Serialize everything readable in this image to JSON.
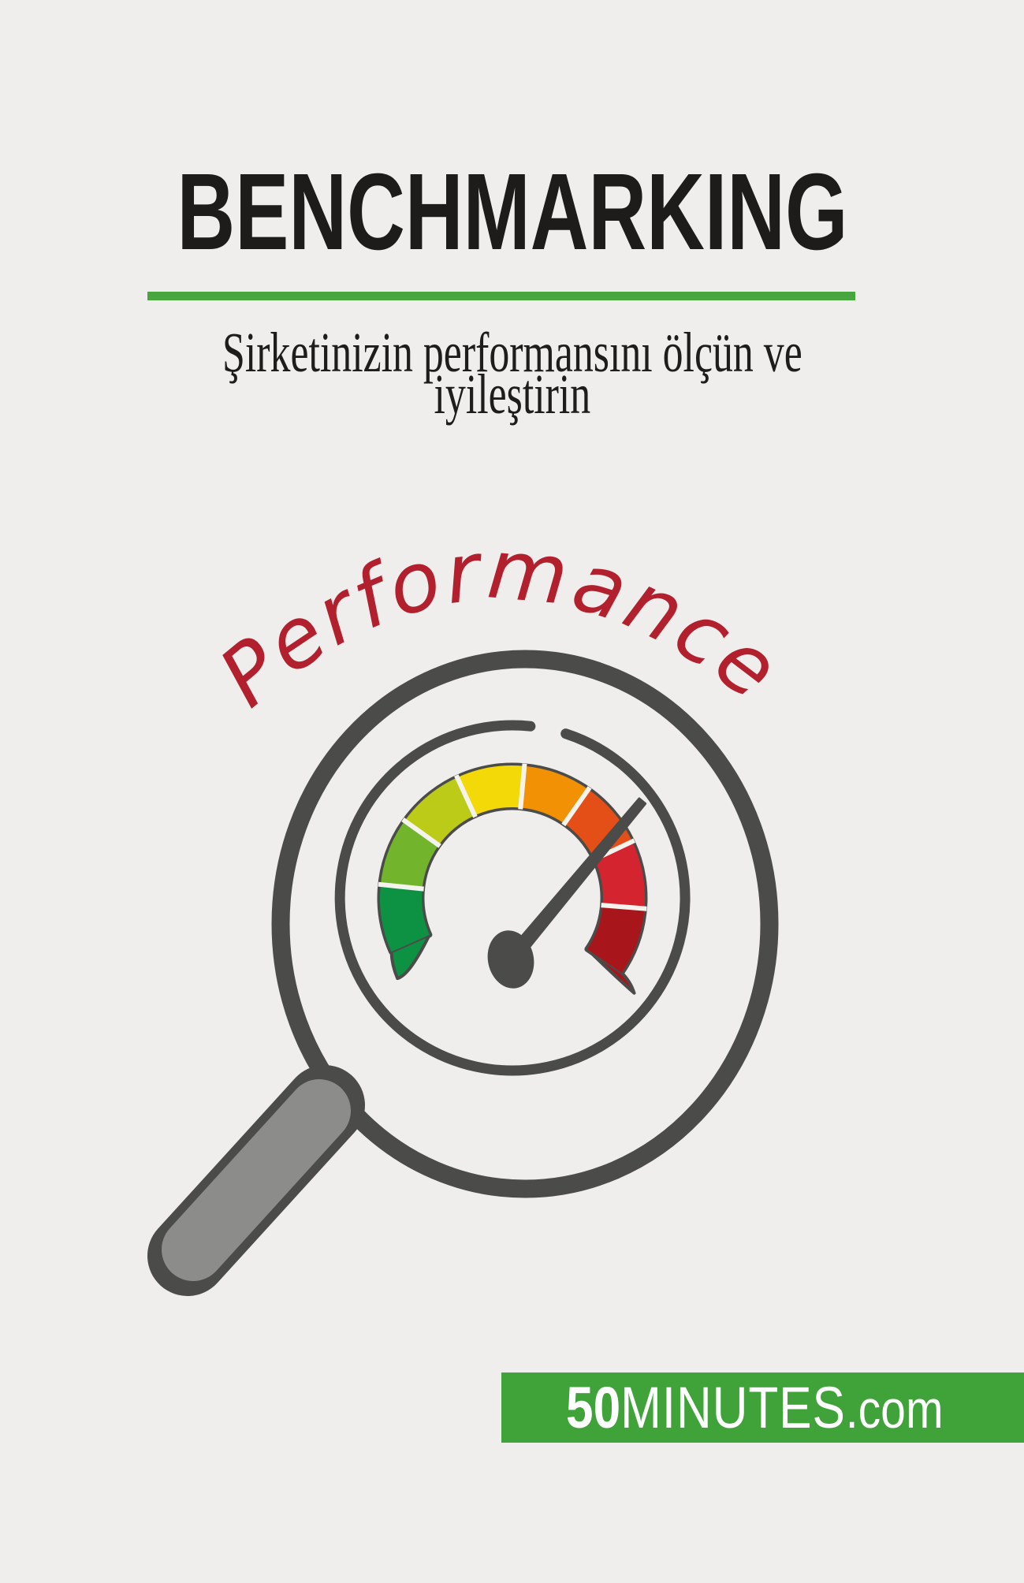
{
  "page": {
    "background": "#efeeec"
  },
  "cover": {
    "title": "BENCHMARKING",
    "title_color": "#1d1c1b",
    "divider_color": "#48a63e",
    "subtitle_line1": "Şirketinizin performansını ölçün ve",
    "subtitle_line2": "iyileştirin",
    "subtitle_color": "#1e1d1b"
  },
  "illustration": {
    "label": "Performance",
    "label_color": "#b2202e",
    "ink_color": "#4b4b49",
    "handle_color": "#8c8c8b",
    "divider_gap_color": "#f5f3ee",
    "gauge_segment_colors": [
      "#0d9243",
      "#72b52c",
      "#bccb17",
      "#f3d908",
      "#f29104",
      "#e34f17",
      "#d32430",
      "#a8161c"
    ]
  },
  "footer": {
    "brand_number": "50",
    "brand_name": "MINUTES",
    "brand_suffix": ".com",
    "bar_color": "#3fa33a",
    "text_color": "#ffffff"
  }
}
